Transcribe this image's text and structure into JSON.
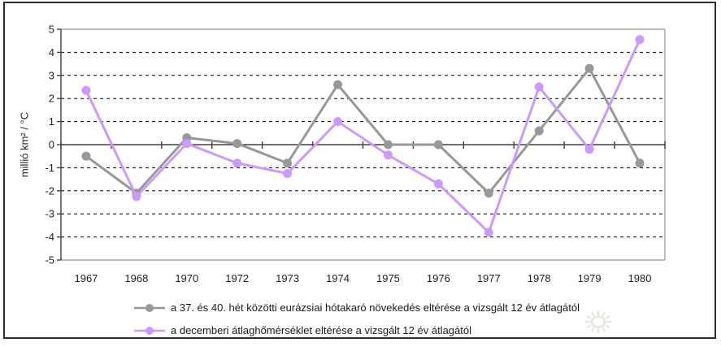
{
  "chart_data": {
    "type": "line",
    "title": "",
    "xlabel": "",
    "ylabel": "millió km² / °C",
    "ylim": [
      -5,
      5
    ],
    "y_ticks": [
      5,
      4,
      3,
      2,
      1,
      0,
      -1,
      -2,
      -3,
      -4,
      -5
    ],
    "grid": "horizontal-dashed-black",
    "legend_position": "bottom-left",
    "categories": [
      "1967",
      "1968",
      "1970",
      "1972",
      "1973",
      "1974",
      "1975",
      "1976",
      "1977",
      "1978",
      "1979",
      "1980"
    ],
    "series": [
      {
        "name": "a 37. és 40. hét közötti eurázsiai hótakaró növekedés eltérése a vizsgált 12 év átlagától",
        "color": "#989898",
        "values": [
          -0.5,
          -2.1,
          0.3,
          0.05,
          -0.8,
          2.6,
          0.0,
          0.0,
          -2.1,
          0.6,
          3.3,
          -0.8
        ]
      },
      {
        "name": "a decemberi átlaghőmérséklet eltérése a vizsgált 12 év átlagától",
        "color": "#cc99ff",
        "values": [
          2.35,
          -2.25,
          0.05,
          -0.8,
          -1.25,
          1.0,
          -0.45,
          -1.7,
          -3.8,
          2.5,
          -0.2,
          4.55
        ]
      }
    ],
    "axis_colors": {
      "axis_line": "#404040",
      "outer_gridline": "#a6a6a6",
      "dashed_gridline": "#000000"
    }
  },
  "watermark": {
    "icon": "sun",
    "color": "#e6e3d9"
  }
}
